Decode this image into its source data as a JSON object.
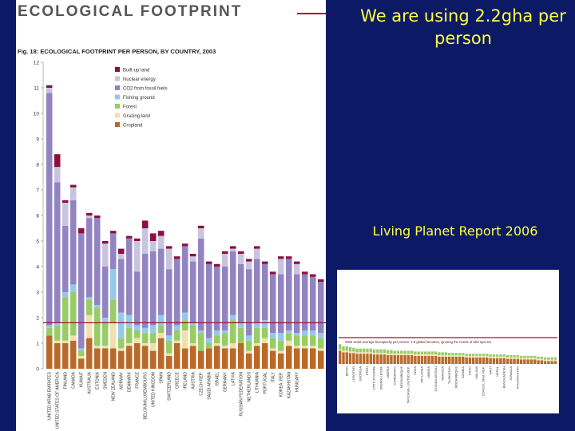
{
  "slide": {
    "headline": "We are using 2.2gha per person",
    "source": "Living Planet Report 2006"
  },
  "document": {
    "title": "ECOLOGICAL FOOTPRINT"
  },
  "colors": {
    "background": "#0c1a66",
    "headline_text": "#ffff40",
    "biocapacity_line": "#a01030"
  },
  "chart_data": [
    {
      "type": "bar",
      "stacked": true,
      "title": "Fig. 18: ECOLOGICAL FOOTPRINT PER PERSON, BY COUNTRY, 2003",
      "ylabel": "",
      "ylim": [
        0,
        12
      ],
      "yticks": [
        0,
        1,
        2,
        3,
        4,
        5,
        6,
        7,
        8,
        9,
        10,
        11,
        12
      ],
      "grid": false,
      "legend_position": "top-left",
      "reference_line": 1.8,
      "categories": [
        "",
        "",
        "",
        "",
        "",
        "",
        "",
        "",
        "",
        "",
        "",
        "",
        "",
        "",
        "",
        "",
        "",
        "",
        "",
        "",
        "",
        "",
        "",
        "",
        "",
        "",
        "",
        "",
        "",
        "",
        "",
        "",
        "",
        "",
        ""
      ],
      "tick_labels": [
        "UNITED ARAB EMIRATES",
        "UNITED STATES OF AMERICA",
        "FINLAND",
        "CANADA",
        "KUWAIT",
        "AUSTRALIA",
        "ESTONIA",
        "SWEDEN",
        "NEW ZEALAND",
        "NORWAY",
        "DENMARK",
        "FRANCE",
        "BELGIUM/LUXEMBOURG",
        "UNITED KINGDOM",
        "SPAIN",
        "SWITZERLAND",
        "GREECE",
        "IRELAND",
        "AUSTRIA",
        "CZECH REP.",
        "SAUDI ARABIA",
        "ISRAEL",
        "GERMANY",
        "LATVIA",
        "RUSSIAN FEDERATION",
        "NETHERLANDS",
        "LITHUANIA",
        "PORTUGAL",
        "ITALY",
        "KOREA, REP.",
        "KAZAKHSTAN",
        "HUNGARY",
        "",
        "",
        ""
      ],
      "series": [
        {
          "name": "Built-up land",
          "color": "#8a1040",
          "values": [
            0.1,
            0.5,
            0.1,
            0.1,
            0.2,
            0.1,
            0.1,
            0.1,
            0.1,
            0.2,
            0.1,
            0.1,
            0.3,
            0.3,
            0.2,
            0.1,
            0.1,
            0.1,
            0.1,
            0.1,
            0.1,
            0.1,
            0.1,
            0.1,
            0.1,
            0.1,
            0.1,
            0.1,
            0.1,
            0.1,
            0.1,
            0.1,
            0.1,
            0.1,
            0.1
          ]
        },
        {
          "name": "Nuclear energy",
          "color": "#c8c4e0",
          "values": [
            0.2,
            0.6,
            0.9,
            0.5,
            0.0,
            0.1,
            0.0,
            0.9,
            0.0,
            0.2,
            0.0,
            1.2,
            1.0,
            0.4,
            0.5,
            0.8,
            0.0,
            0.0,
            0.2,
            0.4,
            0.0,
            0.0,
            0.5,
            0.1,
            0.4,
            0.3,
            0.4,
            0.0,
            0.0,
            0.6,
            0.0,
            0.4,
            0.0,
            0.0,
            0.0
          ]
        },
        {
          "name": "CO2 from fossil fuels",
          "color": "#9284c0",
          "values": [
            9.1,
            5.5,
            2.6,
            3.3,
            4.5,
            3.1,
            3.4,
            2.0,
            1.4,
            2.1,
            3.0,
            2.1,
            2.9,
            2.9,
            2.6,
            2.6,
            2.6,
            2.6,
            2.4,
            3.6,
            2.9,
            2.5,
            2.5,
            2.5,
            2.3,
            2.6,
            2.5,
            2.2,
            2.3,
            2.3,
            2.8,
            2.3,
            2.2,
            2.1,
            2.0
          ]
        },
        {
          "name": "Fishing ground",
          "color": "#98c8e8",
          "values": [
            0.1,
            0.1,
            0.2,
            0.3,
            0.1,
            0.1,
            0.1,
            0.2,
            1.2,
            1.0,
            0.5,
            0.2,
            0.2,
            0.3,
            0.4,
            0.2,
            0.2,
            0.3,
            0.1,
            0.1,
            0.2,
            0.2,
            0.1,
            0.2,
            0.2,
            0.2,
            0.2,
            0.3,
            0.2,
            0.3,
            0.1,
            0.1,
            0.2,
            0.2,
            0.2
          ]
        },
        {
          "name": "Forest",
          "color": "#98cc66",
          "values": [
            0.3,
            0.6,
            1.7,
            1.7,
            0.2,
            0.6,
            1.5,
            0.9,
            0.9,
            0.4,
            0.6,
            0.3,
            0.4,
            0.4,
            0.3,
            0.5,
            0.4,
            0.4,
            0.7,
            0.7,
            0.2,
            0.3,
            0.5,
            0.9,
            0.6,
            0.4,
            0.6,
            0.4,
            0.4,
            0.4,
            0.3,
            0.4,
            0.4,
            0.4,
            0.4
          ]
        },
        {
          "name": "Grazing land",
          "color": "#f0e0b0",
          "values": [
            0.0,
            0.1,
            0.1,
            0.2,
            0.1,
            0.9,
            0.1,
            0.1,
            1.0,
            0.1,
            0.1,
            0.2,
            0.1,
            0.3,
            0.2,
            0.1,
            0.1,
            0.7,
            0.1,
            0.0,
            0.0,
            0.1,
            0.1,
            0.2,
            0.0,
            0.1,
            0.1,
            0.2,
            0.1,
            0.1,
            0.2,
            0.1,
            0.1,
            0.1,
            0.1
          ]
        },
        {
          "name": "Cropland",
          "color": "#b86a2a",
          "values": [
            1.3,
            1.0,
            1.0,
            1.1,
            0.4,
            1.2,
            0.8,
            0.8,
            0.8,
            0.7,
            0.9,
            1.0,
            0.9,
            0.7,
            1.2,
            0.5,
            1.0,
            0.8,
            0.9,
            0.7,
            0.8,
            0.9,
            0.8,
            0.8,
            1.0,
            0.6,
            0.9,
            1.0,
            0.7,
            0.6,
            0.9,
            0.8,
            0.8,
            0.8,
            0.7
          ]
        }
      ]
    },
    {
      "type": "bar",
      "stacked": true,
      "title": "",
      "reference_line_label": "2003 world average biocapacity per person: 1.8 global hectares, ignoring the needs of wild species",
      "categories": [
        "",
        "",
        "",
        "",
        "",
        "",
        "",
        "",
        "",
        "",
        "",
        "",
        "",
        "",
        "",
        "",
        "",
        "",
        "",
        "",
        "",
        "",
        "",
        "",
        "",
        "",
        "",
        "",
        "",
        "",
        "",
        "",
        "",
        "",
        "",
        "",
        "",
        "",
        "",
        "",
        "",
        "",
        "",
        "",
        "",
        "",
        "",
        "",
        "",
        "",
        "",
        "",
        "",
        "",
        "",
        "",
        "",
        "",
        "",
        "",
        "",
        "",
        "",
        ""
      ],
      "tick_labels": [
        "",
        "",
        "BENIN",
        "",
        "LESOTHO",
        "",
        "GEORGIA",
        "",
        "PERU",
        "",
        "CÔTE D'IVOIRE",
        "",
        "SIERRA LEONE",
        "",
        "LIBERIA",
        "",
        "CAMEROON",
        "",
        "MOZAMBIQUE",
        "",
        "TANZANIA, UNITED REP.",
        "",
        "INDIA",
        "",
        "SRI LANKA",
        "",
        "LIBERIA",
        "",
        "GUINEA-BISSAU",
        "",
        "RWANDA",
        "",
        "TAJIKISTAN",
        "",
        "MOZAMBIQUE",
        "",
        "ZAMBIA",
        "",
        "CHAD",
        "",
        "MALAWI",
        "",
        "CONGO, DEM. REP.",
        "",
        "HAITI",
        "",
        "NEPAL",
        "",
        "BANGLADESH",
        "",
        "SOMALIA",
        "",
        "AFGHANISTAN",
        "",
        "",
        "",
        "",
        "",
        "",
        "",
        "",
        "",
        "",
        ""
      ],
      "series": [
        {
          "name": "Forest",
          "color": "#98cc66",
          "values": [
            0.35,
            0.3,
            0.3,
            0.3,
            0.25,
            0.25,
            0.25,
            0.25,
            0.25,
            0.25,
            0.25,
            0.25,
            0.25,
            0.25,
            0.25,
            0.25,
            0.2,
            0.2,
            0.2,
            0.2,
            0.2,
            0.2,
            0.2,
            0.2,
            0.2,
            0.2,
            0.2,
            0.2,
            0.2,
            0.2,
            0.2,
            0.2,
            0.15,
            0.15,
            0.15,
            0.15,
            0.15,
            0.15,
            0.15,
            0.15,
            0.15,
            0.15,
            0.15,
            0.15,
            0.15,
            0.15,
            0.15,
            0.15,
            0.15,
            0.15,
            0.15,
            0.15,
            0.15,
            0.15,
            0.15,
            0.15,
            0.15,
            0.15,
            0.15,
            0.15,
            0.15,
            0.15,
            0.15,
            0.15
          ]
        },
        {
          "name": "Grazing land",
          "color": "#f0e0b0",
          "values": [
            0.1,
            0.1,
            0.1,
            0.1,
            0.1,
            0.1,
            0.1,
            0.1,
            0.1,
            0.1,
            0.1,
            0.1,
            0.1,
            0.1,
            0.1,
            0.1,
            0.1,
            0.1,
            0.1,
            0.1,
            0.1,
            0.1,
            0.1,
            0.1,
            0.1,
            0.1,
            0.1,
            0.1,
            0.1,
            0.1,
            0.1,
            0.1,
            0.1,
            0.1,
            0.1,
            0.1,
            0.1,
            0.1,
            0.1,
            0.1,
            0.1,
            0.1,
            0.1,
            0.1,
            0.1,
            0.1,
            0.1,
            0.1,
            0.1,
            0.1,
            0.1,
            0.1,
            0.1,
            0.1,
            0.1,
            0.1,
            0.1,
            0.1,
            0.1,
            0.1,
            0.1,
            0.1,
            0.1,
            0.1
          ]
        },
        {
          "name": "Cropland",
          "color": "#b86a2a",
          "values": [
            0.9,
            0.8,
            0.8,
            0.75,
            0.75,
            0.7,
            0.7,
            0.7,
            0.7,
            0.7,
            0.65,
            0.65,
            0.65,
            0.65,
            0.6,
            0.6,
            0.6,
            0.6,
            0.6,
            0.6,
            0.6,
            0.6,
            0.55,
            0.55,
            0.55,
            0.55,
            0.55,
            0.55,
            0.55,
            0.5,
            0.5,
            0.5,
            0.5,
            0.5,
            0.5,
            0.5,
            0.5,
            0.45,
            0.45,
            0.45,
            0.45,
            0.45,
            0.45,
            0.45,
            0.4,
            0.4,
            0.4,
            0.4,
            0.4,
            0.35,
            0.35,
            0.35,
            0.35,
            0.3,
            0.3,
            0.3,
            0.3,
            0.3,
            0.25,
            0.25,
            0.2,
            0.2,
            0.2,
            0.2
          ]
        }
      ]
    }
  ]
}
